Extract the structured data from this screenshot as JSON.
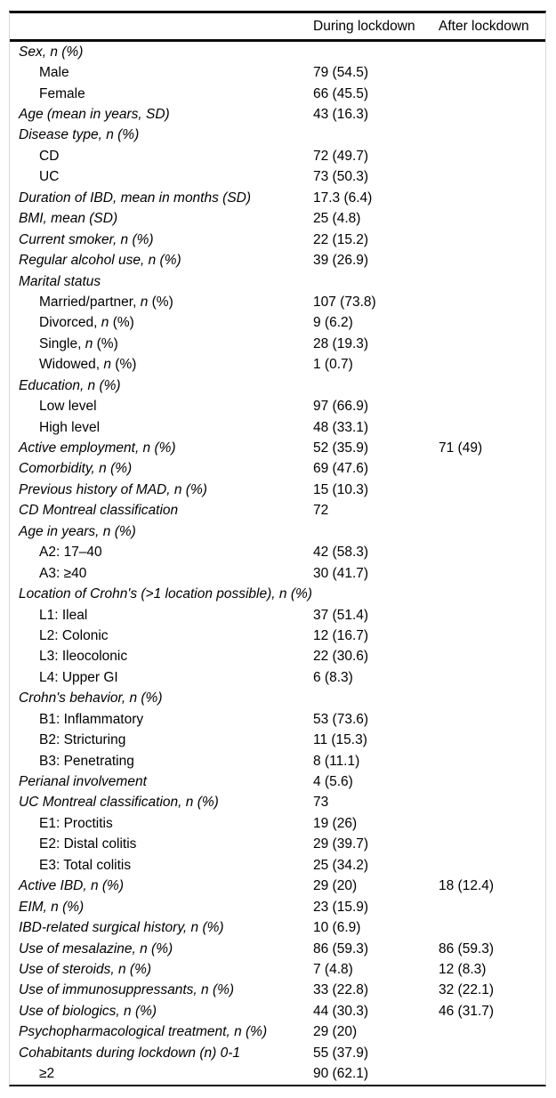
{
  "colors": {
    "background": "#ffffff",
    "text": "#000000",
    "rule": "#0a0a0a",
    "frame": "#d9d9d9"
  },
  "table": {
    "header": {
      "during": "During lockdown",
      "after": "After lockdown"
    },
    "rows": [
      {
        "parts": [
          {
            "text": "Sex, n (%)",
            "italic": true
          }
        ],
        "indent": false,
        "during": "",
        "after": ""
      },
      {
        "parts": [
          {
            "text": "Male",
            "italic": false
          }
        ],
        "indent": true,
        "during": "79 (54.5)",
        "after": ""
      },
      {
        "parts": [
          {
            "text": "Female",
            "italic": false
          }
        ],
        "indent": true,
        "during": "66 (45.5)",
        "after": ""
      },
      {
        "parts": [
          {
            "text": "Age (mean in years, SD)",
            "italic": true
          }
        ],
        "indent": false,
        "during": "43 (16.3)",
        "after": ""
      },
      {
        "parts": [
          {
            "text": "Disease type, n (%)",
            "italic": true
          }
        ],
        "indent": false,
        "during": "",
        "after": ""
      },
      {
        "parts": [
          {
            "text": "CD",
            "italic": false
          }
        ],
        "indent": true,
        "during": "72 (49.7)",
        "after": ""
      },
      {
        "parts": [
          {
            "text": "UC",
            "italic": false
          }
        ],
        "indent": true,
        "during": "73 (50.3)",
        "after": ""
      },
      {
        "parts": [
          {
            "text": "Duration of IBD, mean in months (SD)",
            "italic": true
          }
        ],
        "indent": false,
        "during": "17.3 (6.4)",
        "after": ""
      },
      {
        "parts": [
          {
            "text": "BMI, mean (SD)",
            "italic": true
          }
        ],
        "indent": false,
        "during": "25 (4.8)",
        "after": ""
      },
      {
        "parts": [
          {
            "text": "Current smoker, n (%)",
            "italic": true
          }
        ],
        "indent": false,
        "during": "22 (15.2)",
        "after": ""
      },
      {
        "parts": [
          {
            "text": "Regular alcohol use, n (%)",
            "italic": true
          }
        ],
        "indent": false,
        "during": "39 (26.9)",
        "after": ""
      },
      {
        "parts": [
          {
            "text": "Marital status",
            "italic": true
          }
        ],
        "indent": false,
        "during": "",
        "after": ""
      },
      {
        "parts": [
          {
            "text": "Married/partner, ",
            "italic": false
          },
          {
            "text": "n",
            "italic": true
          },
          {
            "text": " (%)",
            "italic": false
          }
        ],
        "indent": true,
        "during": "107 (73.8)",
        "after": ""
      },
      {
        "parts": [
          {
            "text": "Divorced, ",
            "italic": false
          },
          {
            "text": "n",
            "italic": true
          },
          {
            "text": " (%)",
            "italic": false
          }
        ],
        "indent": true,
        "during": "9 (6.2)",
        "after": ""
      },
      {
        "parts": [
          {
            "text": "Single, ",
            "italic": false
          },
          {
            "text": "n",
            "italic": true
          },
          {
            "text": " (%)",
            "italic": false
          }
        ],
        "indent": true,
        "during": "28 (19.3)",
        "after": ""
      },
      {
        "parts": [
          {
            "text": "Widowed, ",
            "italic": false
          },
          {
            "text": "n",
            "italic": true
          },
          {
            "text": " (%)",
            "italic": false
          }
        ],
        "indent": true,
        "during": "1 (0.7)",
        "after": ""
      },
      {
        "parts": [
          {
            "text": "Education, n (%)",
            "italic": true
          }
        ],
        "indent": false,
        "during": "",
        "after": ""
      },
      {
        "parts": [
          {
            "text": "Low level",
            "italic": false
          }
        ],
        "indent": true,
        "during": "97 (66.9)",
        "after": ""
      },
      {
        "parts": [
          {
            "text": "High level",
            "italic": false
          }
        ],
        "indent": true,
        "during": "48 (33.1)",
        "after": ""
      },
      {
        "parts": [
          {
            "text": "Active employment, n (%)",
            "italic": true
          }
        ],
        "indent": false,
        "during": "52 (35.9)",
        "after": "71 (49)"
      },
      {
        "parts": [
          {
            "text": "Comorbidity, n (%)",
            "italic": true
          }
        ],
        "indent": false,
        "during": "69 (47.6)",
        "after": ""
      },
      {
        "parts": [
          {
            "text": "Previous history of MAD, n (%)",
            "italic": true
          }
        ],
        "indent": false,
        "during": "15 (10.3)",
        "after": ""
      },
      {
        "parts": [
          {
            "text": "CD Montreal classification",
            "italic": true
          }
        ],
        "indent": false,
        "during": "72",
        "after": ""
      },
      {
        "parts": [
          {
            "text": "Age in years, n (%)",
            "italic": true
          }
        ],
        "indent": false,
        "during": "",
        "after": ""
      },
      {
        "parts": [
          {
            "text": "A2: 17–40",
            "italic": false
          }
        ],
        "indent": true,
        "during": "42 (58.3)",
        "after": ""
      },
      {
        "parts": [
          {
            "text": "A3: ≥40",
            "italic": false
          }
        ],
        "indent": true,
        "during": "30 (41.7)",
        "after": ""
      },
      {
        "parts": [
          {
            "text": "Location of Crohn's (>1 location possible), n (%)",
            "italic": true
          }
        ],
        "indent": false,
        "during": "",
        "after": ""
      },
      {
        "parts": [
          {
            "text": "L1: Ileal",
            "italic": false
          }
        ],
        "indent": true,
        "during": "37 (51.4)",
        "after": ""
      },
      {
        "parts": [
          {
            "text": "L2: Colonic",
            "italic": false
          }
        ],
        "indent": true,
        "during": "12 (16.7)",
        "after": ""
      },
      {
        "parts": [
          {
            "text": "L3: Ileocolonic",
            "italic": false
          }
        ],
        "indent": true,
        "during": "22 (30.6)",
        "after": ""
      },
      {
        "parts": [
          {
            "text": "L4: Upper GI",
            "italic": false
          }
        ],
        "indent": true,
        "during": "6 (8.3)",
        "after": ""
      },
      {
        "parts": [
          {
            "text": "Crohn's behavior, n (%)",
            "italic": true
          }
        ],
        "indent": false,
        "during": "",
        "after": ""
      },
      {
        "parts": [
          {
            "text": "B1: Inflammatory",
            "italic": false
          }
        ],
        "indent": true,
        "during": "53 (73.6)",
        "after": ""
      },
      {
        "parts": [
          {
            "text": "B2: Stricturing",
            "italic": false
          }
        ],
        "indent": true,
        "during": "11 (15.3)",
        "after": ""
      },
      {
        "parts": [
          {
            "text": "B3: Penetrating",
            "italic": false
          }
        ],
        "indent": true,
        "during": "8 (11.1)",
        "after": ""
      },
      {
        "parts": [
          {
            "text": "Perianal involvement",
            "italic": true
          }
        ],
        "indent": false,
        "during": "4 (5.6)",
        "after": ""
      },
      {
        "parts": [
          {
            "text": "UC Montreal classification, n (%)",
            "italic": true
          }
        ],
        "indent": false,
        "during": "73",
        "after": ""
      },
      {
        "parts": [
          {
            "text": "E1: Proctitis",
            "italic": false
          }
        ],
        "indent": true,
        "during": "19 (26)",
        "after": ""
      },
      {
        "parts": [
          {
            "text": "E2: Distal colitis",
            "italic": false
          }
        ],
        "indent": true,
        "during": "29 (39.7)",
        "after": ""
      },
      {
        "parts": [
          {
            "text": "E3: Total colitis",
            "italic": false
          }
        ],
        "indent": true,
        "during": "25 (34.2)",
        "after": ""
      },
      {
        "parts": [
          {
            "text": "Active IBD, n (%)",
            "italic": true
          }
        ],
        "indent": false,
        "during": "29 (20)",
        "after": "18 (12.4)"
      },
      {
        "parts": [
          {
            "text": "EIM, n (%)",
            "italic": true
          }
        ],
        "indent": false,
        "during": "23 (15.9)",
        "after": ""
      },
      {
        "parts": [
          {
            "text": "IBD-related surgical history, n (%)",
            "italic": true
          }
        ],
        "indent": false,
        "during": "10 (6.9)",
        "after": ""
      },
      {
        "parts": [
          {
            "text": "Use of mesalazine, n (%)",
            "italic": true
          }
        ],
        "indent": false,
        "during": "86 (59.3)",
        "after": "86 (59.3)"
      },
      {
        "parts": [
          {
            "text": "Use of steroids, n (%)",
            "italic": true
          }
        ],
        "indent": false,
        "during": "7 (4.8)",
        "after": "12 (8.3)"
      },
      {
        "parts": [
          {
            "text": "Use of immunosuppressants, n (%)",
            "italic": true
          }
        ],
        "indent": false,
        "during": "33 (22.8)",
        "after": "32 (22.1)"
      },
      {
        "parts": [
          {
            "text": "Use of biologics, n (%)",
            "italic": true
          }
        ],
        "indent": false,
        "during": "44 (30.3)",
        "after": "46 (31.7)"
      },
      {
        "parts": [
          {
            "text": "Psychopharmacological treatment, n (%)",
            "italic": true
          }
        ],
        "indent": false,
        "during": "29 (20)",
        "after": ""
      },
      {
        "parts": [
          {
            "text": "Cohabitants during lockdown (n) 0-1",
            "italic": true
          }
        ],
        "indent": false,
        "during": "55 (37.9)",
        "after": ""
      },
      {
        "parts": [
          {
            "text": "≥2",
            "italic": false
          }
        ],
        "indent": true,
        "during": "90 (62.1)",
        "after": ""
      }
    ]
  }
}
